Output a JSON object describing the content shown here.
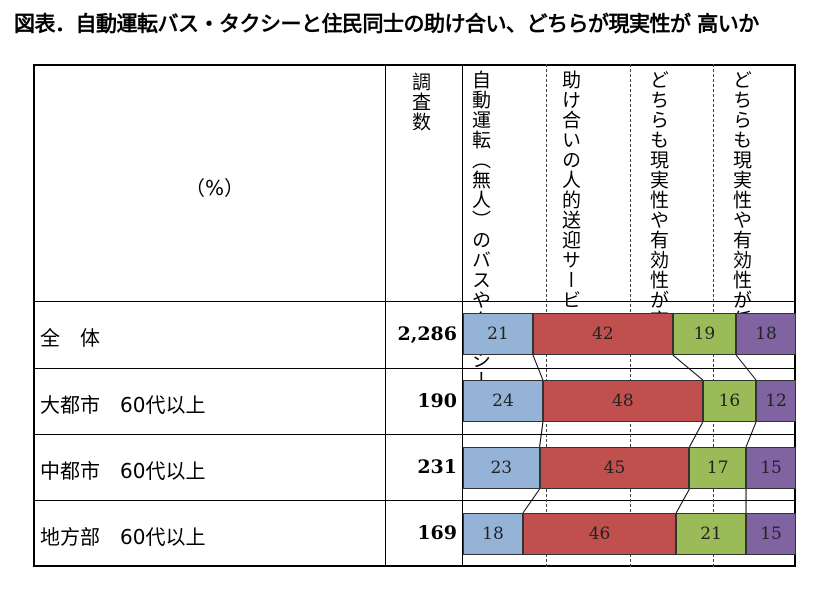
{
  "title": "図表．自動運転バス・タクシーと住民同士の助け合い、どちらが現実性が 高いか",
  "table": {
    "unit_label": "（%）",
    "count_header": "調査数",
    "column_headers": [
      "自動運転（無人）のバスやタクシー",
      "助け合いの人的送迎サービス",
      "どちらも現実性や有効性が高い",
      "どちらも現実性や有効性が低い"
    ]
  },
  "colors": [
    "#95b3d7",
    "#c0504d",
    "#9bbb59",
    "#8064a2"
  ],
  "chart_data": {
    "type": "bar",
    "stacked": true,
    "orientation": "horizontal",
    "categories": [
      "全　体",
      "大都市　60代以上",
      "中都市　60代以上",
      "地方部　60代以上"
    ],
    "counts": [
      "2,286",
      "190",
      "231",
      "169"
    ],
    "series": [
      {
        "name": "自動運転（無人）のバスやタクシー",
        "values": [
          21,
          24,
          23,
          18
        ]
      },
      {
        "name": "助け合いの人的送迎サービス",
        "values": [
          42,
          48,
          45,
          46
        ]
      },
      {
        "name": "どちらも現実性や有効性が高い",
        "values": [
          19,
          16,
          17,
          21
        ]
      },
      {
        "name": "どちらも現実性や有効性が低い",
        "values": [
          18,
          12,
          15,
          15
        ]
      }
    ]
  }
}
